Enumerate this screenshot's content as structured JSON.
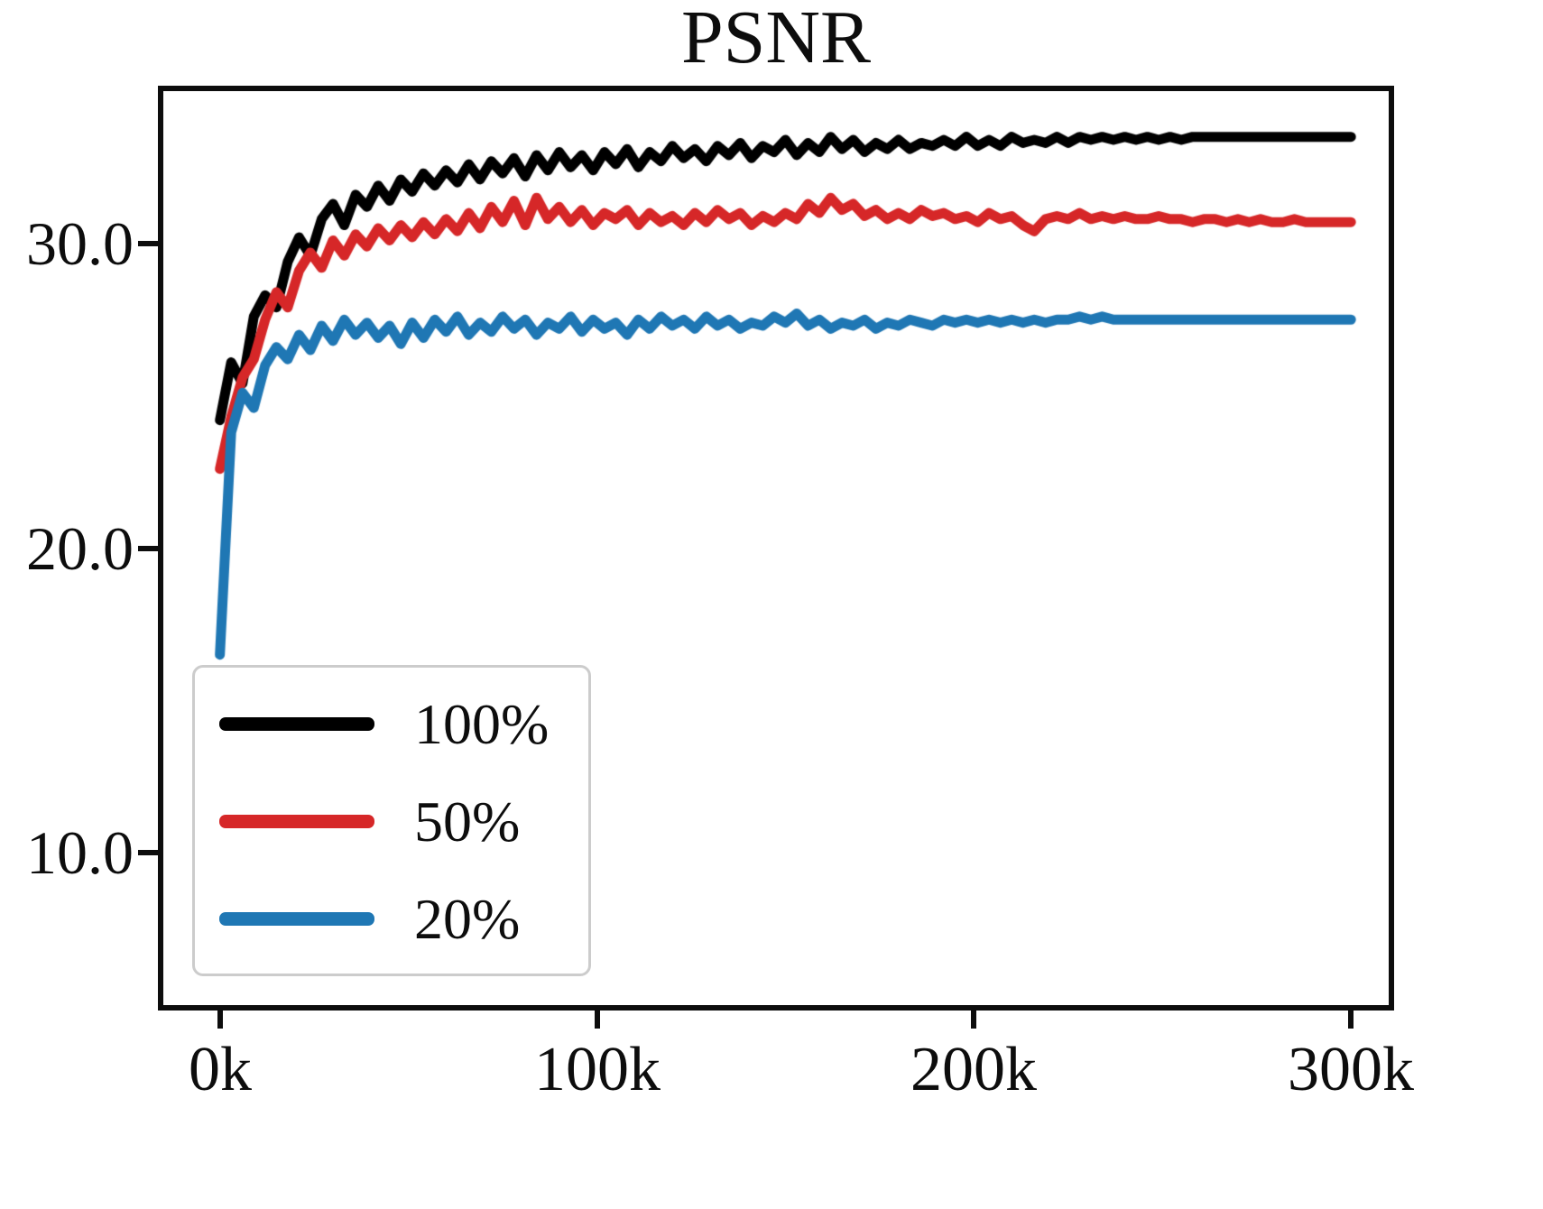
{
  "figure": {
    "title": "PSNR"
  },
  "chart_data": {
    "type": "line",
    "title": "PSNR",
    "xlabel": "",
    "ylabel": "",
    "x_unit": "thousands of iterations",
    "xlim": [
      -15,
      310
    ],
    "ylim": [
      5,
      35
    ],
    "grid": false,
    "legend_position": "lower left",
    "xticks": [
      {
        "value": 0,
        "label": "0k"
      },
      {
        "value": 100,
        "label": "100k"
      },
      {
        "value": 200,
        "label": "200k"
      },
      {
        "value": 300,
        "label": "300k"
      }
    ],
    "yticks": [
      {
        "value": 30,
        "label": "30.0"
      },
      {
        "value": 20,
        "label": "20.0"
      },
      {
        "value": 10,
        "label": "10.0"
      }
    ],
    "x": [
      0,
      3,
      6,
      9,
      12,
      15,
      18,
      21,
      24,
      27,
      30,
      33,
      36,
      39,
      42,
      45,
      48,
      51,
      54,
      57,
      60,
      63,
      66,
      69,
      72,
      75,
      78,
      81,
      84,
      87,
      90,
      93,
      96,
      99,
      102,
      105,
      108,
      111,
      114,
      117,
      120,
      123,
      126,
      129,
      132,
      135,
      138,
      141,
      144,
      147,
      150,
      153,
      156,
      159,
      162,
      165,
      168,
      171,
      174,
      177,
      180,
      183,
      186,
      189,
      192,
      195,
      198,
      201,
      204,
      207,
      210,
      213,
      216,
      219,
      222,
      225,
      228,
      231,
      234,
      237,
      240,
      243,
      246,
      249,
      252,
      255,
      258,
      261,
      264,
      267,
      270,
      273,
      276,
      279,
      282,
      285,
      288,
      291,
      294,
      297,
      300
    ],
    "series": [
      {
        "name": "100%",
        "color": "#000000",
        "values": [
          24.2,
          26.1,
          25.4,
          27.6,
          28.3,
          27.9,
          29.4,
          30.2,
          29.6,
          30.8,
          31.3,
          30.6,
          31.6,
          31.2,
          31.9,
          31.4,
          32.1,
          31.7,
          32.3,
          31.9,
          32.4,
          32.0,
          32.6,
          32.1,
          32.7,
          32.3,
          32.8,
          32.2,
          32.9,
          32.4,
          33.0,
          32.5,
          32.9,
          32.4,
          33.0,
          32.6,
          33.1,
          32.5,
          33.0,
          32.7,
          33.2,
          32.8,
          33.1,
          32.7,
          33.2,
          32.9,
          33.3,
          32.8,
          33.2,
          33.0,
          33.4,
          32.9,
          33.3,
          33.0,
          33.5,
          33.1,
          33.4,
          33.0,
          33.3,
          33.1,
          33.4,
          33.1,
          33.3,
          33.2,
          33.4,
          33.2,
          33.5,
          33.2,
          33.4,
          33.2,
          33.5,
          33.3,
          33.4,
          33.3,
          33.5,
          33.3,
          33.5,
          33.4,
          33.5,
          33.4,
          33.5,
          33.4,
          33.5,
          33.4,
          33.5,
          33.4,
          33.5,
          33.5,
          33.5,
          33.5,
          33.5,
          33.5,
          33.5,
          33.5,
          33.5,
          33.5,
          33.5,
          33.5,
          33.5,
          33.5,
          33.5
        ]
      },
      {
        "name": "50%",
        "color": "#d62728",
        "values": [
          22.6,
          24.3,
          25.6,
          26.2,
          27.5,
          28.4,
          27.9,
          29.1,
          29.7,
          29.2,
          30.1,
          29.6,
          30.3,
          29.9,
          30.5,
          30.1,
          30.6,
          30.2,
          30.7,
          30.3,
          30.8,
          30.4,
          31.0,
          30.5,
          31.2,
          30.7,
          31.4,
          30.6,
          31.5,
          30.8,
          31.2,
          30.7,
          31.1,
          30.6,
          31.0,
          30.8,
          31.1,
          30.6,
          31.0,
          30.7,
          30.9,
          30.6,
          31.0,
          30.7,
          31.1,
          30.8,
          31.0,
          30.6,
          30.9,
          30.7,
          31.0,
          30.8,
          31.3,
          31.0,
          31.5,
          31.1,
          31.3,
          30.9,
          31.1,
          30.8,
          31.0,
          30.8,
          31.1,
          30.9,
          31.0,
          30.8,
          30.9,
          30.7,
          31.0,
          30.8,
          30.9,
          30.6,
          30.4,
          30.8,
          30.9,
          30.8,
          31.0,
          30.8,
          30.9,
          30.8,
          30.9,
          30.8,
          30.8,
          30.9,
          30.8,
          30.8,
          30.7,
          30.8,
          30.8,
          30.7,
          30.8,
          30.7,
          30.8,
          30.7,
          30.7,
          30.8,
          30.7,
          30.7,
          30.7,
          30.7,
          30.7
        ]
      },
      {
        "name": "20%",
        "color": "#1f77b4",
        "values": [
          16.5,
          23.8,
          25.1,
          24.6,
          26.0,
          26.6,
          26.2,
          27.0,
          26.5,
          27.3,
          26.8,
          27.5,
          27.0,
          27.4,
          26.9,
          27.3,
          26.7,
          27.4,
          26.9,
          27.5,
          27.1,
          27.6,
          27.0,
          27.4,
          27.1,
          27.6,
          27.2,
          27.5,
          27.0,
          27.4,
          27.2,
          27.6,
          27.1,
          27.5,
          27.2,
          27.4,
          27.0,
          27.5,
          27.2,
          27.6,
          27.3,
          27.5,
          27.2,
          27.6,
          27.3,
          27.5,
          27.2,
          27.4,
          27.3,
          27.6,
          27.4,
          27.7,
          27.3,
          27.5,
          27.2,
          27.4,
          27.3,
          27.5,
          27.2,
          27.4,
          27.3,
          27.5,
          27.4,
          27.3,
          27.5,
          27.4,
          27.5,
          27.4,
          27.5,
          27.4,
          27.5,
          27.4,
          27.5,
          27.4,
          27.5,
          27.5,
          27.6,
          27.5,
          27.6,
          27.5,
          27.5,
          27.5,
          27.5,
          27.5,
          27.5,
          27.5,
          27.5,
          27.5,
          27.5,
          27.5,
          27.5,
          27.5,
          27.5,
          27.5,
          27.5,
          27.5,
          27.5,
          27.5,
          27.5,
          27.5,
          27.5
        ]
      }
    ]
  }
}
